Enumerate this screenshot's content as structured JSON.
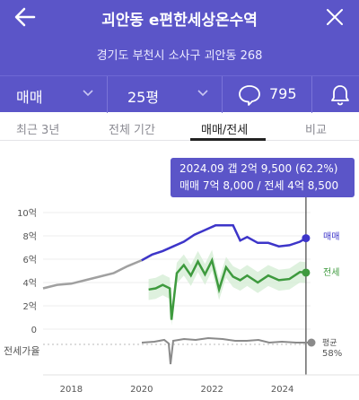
{
  "header": {
    "title": "괴안동 e편한세상온수역",
    "address": "경기도 부천시 소사구 괴안동 268",
    "back_icon": "arrow-left-icon",
    "close_icon": "close-icon"
  },
  "filters": {
    "trade_type": "매매",
    "area": "25평",
    "comment_count": "795"
  },
  "tabs": [
    {
      "label": "최근 3년"
    },
    {
      "label": "전체 기간"
    },
    {
      "label": "매매/전세"
    },
    {
      "label": "비교"
    }
  ],
  "active_tab": "매매/전세",
  "tooltip": {
    "line1": "2024.09  갭 2억 9,500 (62.2%)",
    "line2": "매매 7억 8,000 / 전세 4억 8,500"
  },
  "colors": {
    "brand": "#5b55c8",
    "sale": "#3d35c9",
    "jeonse": "#3e9a3e",
    "pre_sale": "#a0a0a0"
  },
  "chart_data": {
    "type": "line",
    "y_ticks": [
      "10억",
      "8억",
      "6억",
      "4억",
      "2억",
      "0"
    ],
    "ylim": [
      0,
      10
    ],
    "x_ticks": [
      "2018",
      "2020",
      "2022",
      "2024"
    ],
    "xlim": [
      2017.2,
      2024.8
    ],
    "series": [
      {
        "name": "매매",
        "x": [
          2017.2,
          2017.6,
          2018.0,
          2018.4,
          2018.8,
          2019.2,
          2019.6,
          2020.0,
          2020.3,
          2020.6,
          2020.9,
          2021.2,
          2021.5,
          2021.8,
          2022.1,
          2022.4,
          2022.6,
          2022.8,
          2023.0,
          2023.3,
          2023.6,
          2023.9,
          2024.2,
          2024.5,
          2024.67
        ],
        "values": [
          3.5,
          3.8,
          3.9,
          4.2,
          4.5,
          4.8,
          5.4,
          5.9,
          6.4,
          6.7,
          7.1,
          7.5,
          8.1,
          8.5,
          8.9,
          8.9,
          8.9,
          7.6,
          7.9,
          7.4,
          7.4,
          7.1,
          7.2,
          7.5,
          7.8
        ]
      },
      {
        "name": "전세",
        "x": [
          2020.2,
          2020.4,
          2020.6,
          2020.8,
          2020.85,
          2021.0,
          2021.2,
          2021.4,
          2021.6,
          2021.8,
          2022.0,
          2022.2,
          2022.4,
          2022.6,
          2022.8,
          2023.0,
          2023.3,
          2023.6,
          2023.9,
          2024.2,
          2024.5,
          2024.67
        ],
        "values": [
          3.4,
          3.5,
          3.8,
          3.5,
          0.8,
          4.8,
          5.5,
          4.6,
          5.8,
          4.7,
          5.9,
          3.4,
          5.3,
          4.5,
          4.2,
          4.6,
          4.0,
          4.6,
          4.2,
          4.3,
          4.9,
          4.85
        ]
      }
    ],
    "ratio_panel": {
      "label": "전세가율",
      "avg_label": "평균",
      "avg_value": "58%"
    }
  }
}
